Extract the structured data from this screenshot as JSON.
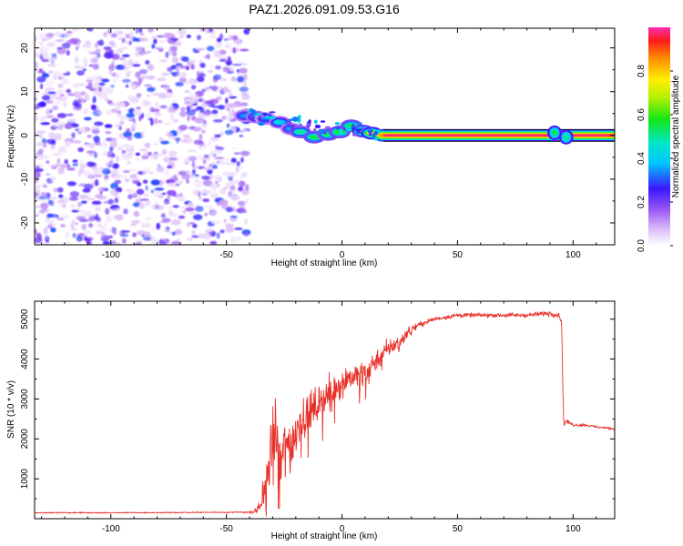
{
  "title": "PAZ1.2026.091.09.53.G16",
  "chart_data": [
    {
      "type": "heatmap",
      "xlabel": "Height of straight line (km)",
      "ylabel": "Frequency (Hz)",
      "xlim": [
        -133,
        118
      ],
      "ylim": [
        -25,
        24.5
      ],
      "xticks": [
        -100,
        -50,
        0,
        50,
        100
      ],
      "yticks": [
        -20,
        -10,
        0,
        10,
        20
      ],
      "colorbar": {
        "label": "Normalized spectral amplitude",
        "range": [
          0,
          1
        ],
        "ticks": [
          0.0,
          0.2,
          0.4,
          0.6,
          0.8
        ],
        "tick_labels": [
          "0.0",
          "0.2",
          "0.4",
          "0.6",
          "0.8"
        ]
      },
      "noise_region": {
        "x_from": -133,
        "x_to": -43
      },
      "transition_ridge": [
        {
          "x": -42,
          "freq": 4.5,
          "amp": 0.35
        },
        {
          "x": -37,
          "freq": 4.2,
          "amp": 0.4
        },
        {
          "x": -33,
          "freq": 3.8,
          "amp": 0.32
        },
        {
          "x": -27,
          "freq": 3.0,
          "amp": 0.42
        },
        {
          "x": -22,
          "freq": 1.5,
          "amp": 0.36
        },
        {
          "x": -18,
          "freq": 0.8,
          "amp": 0.5
        },
        {
          "x": -12,
          "freq": -0.4,
          "amp": 0.55
        },
        {
          "x": -6,
          "freq": 0.2,
          "amp": 0.52
        },
        {
          "x": -1,
          "freq": 0.8,
          "amp": 0.58
        },
        {
          "x": 4,
          "freq": 2.2,
          "amp": 0.55
        },
        {
          "x": 9,
          "freq": 1.0,
          "amp": 0.62
        },
        {
          "x": 13,
          "freq": 0.5,
          "amp": 0.72
        },
        {
          "x": 18,
          "freq": 0.0,
          "amp": 0.85
        }
      ],
      "carrier_line": {
        "x_from": 18,
        "x_to": 118,
        "freq": 0,
        "amp": 1.0
      },
      "late_blob": [
        {
          "x": 92,
          "freq": 0.6,
          "amp": 0.55
        },
        {
          "x": 97,
          "freq": -0.4,
          "amp": 0.5
        }
      ]
    },
    {
      "type": "line",
      "xlabel": "Height of straight line (km)",
      "ylabel": "SNR (10 * v/v)",
      "xlim": [
        -133,
        118
      ],
      "ylim": [
        0,
        5450
      ],
      "xticks": [
        -100,
        -50,
        0,
        50,
        100
      ],
      "yticks": [
        1000,
        2000,
        3000,
        4000,
        5000
      ],
      "series": [
        {
          "name": "SNR",
          "color": "#e8312a",
          "x": [
            -133,
            -120,
            -100,
            -80,
            -60,
            -45,
            -38,
            -35,
            -33,
            -31,
            -29,
            -27,
            -25,
            -22,
            -20,
            -18,
            -15,
            -12,
            -10,
            -8,
            -5,
            -2,
            0,
            3,
            6,
            10,
            15,
            20,
            25,
            30,
            35,
            40,
            45,
            50,
            55,
            60,
            70,
            80,
            90,
            94,
            95,
            95.5,
            96,
            97,
            100,
            105,
            110,
            118
          ],
          "values": [
            150,
            150,
            150,
            150,
            160,
            160,
            170,
            350,
            900,
            1600,
            2300,
            1200,
            1900,
            1800,
            2200,
            2500,
            2600,
            2750,
            2950,
            3000,
            3150,
            3350,
            3400,
            3550,
            3550,
            3650,
            4000,
            4250,
            4450,
            4750,
            4900,
            5000,
            5050,
            5100,
            5100,
            5100,
            5100,
            5100,
            5150,
            5100,
            4950,
            3500,
            2350,
            2450,
            2350,
            2350,
            2300,
            2250
          ],
          "noise": [
            20,
            20,
            20,
            20,
            20,
            25,
            40,
            250,
            700,
            900,
            900,
            800,
            800,
            700,
            650,
            650,
            550,
            500,
            500,
            450,
            450,
            420,
            400,
            380,
            380,
            350,
            300,
            250,
            200,
            150,
            120,
            100,
            90,
            90,
            90,
            90,
            90,
            90,
            110,
            120,
            150,
            200,
            90,
            70,
            50,
            50,
            50,
            50
          ]
        }
      ]
    }
  ]
}
